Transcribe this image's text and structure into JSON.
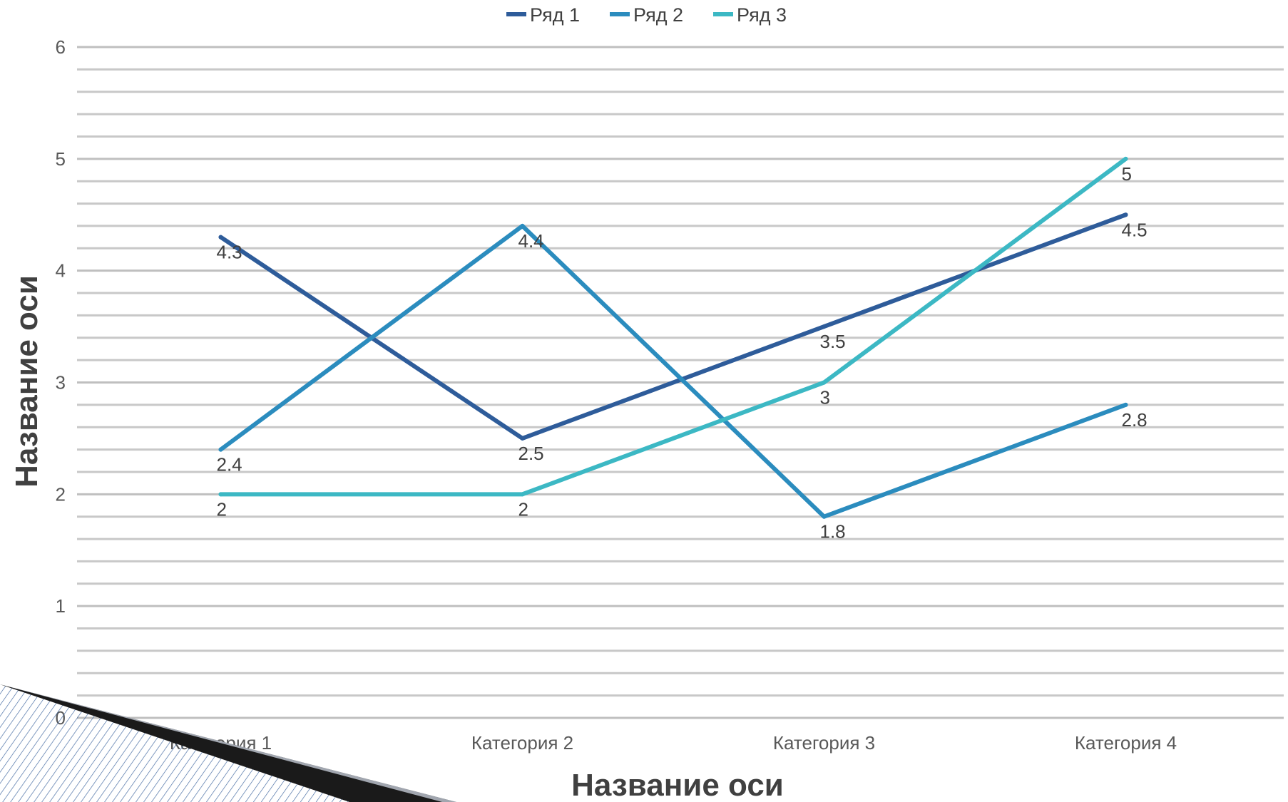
{
  "chart_data": {
    "type": "line",
    "categories": [
      "Категория 1",
      "Категория 2",
      "Категория 3",
      "Категория 4"
    ],
    "series": [
      {
        "name": "Ряд 1",
        "values": [
          4.3,
          2.5,
          3.5,
          4.5
        ],
        "color": "#2e5c9a"
      },
      {
        "name": "Ряд 2",
        "values": [
          2.4,
          4.4,
          1.8,
          2.8
        ],
        "color": "#2b8cbe"
      },
      {
        "name": "Ряд 3",
        "values": [
          2,
          2,
          3,
          5
        ],
        "color": "#3cb8c4"
      }
    ],
    "xlabel": "Название оси",
    "ylabel": "Название оси",
    "ylim": [
      0,
      6
    ],
    "yticks": [
      0,
      1,
      2,
      3,
      4,
      5,
      6
    ],
    "grid": true,
    "legend": "top"
  },
  "slide_decoration": {
    "corner_accent_color": "#1a1a1a",
    "corner_hatch_color": "#4a6fa5"
  }
}
